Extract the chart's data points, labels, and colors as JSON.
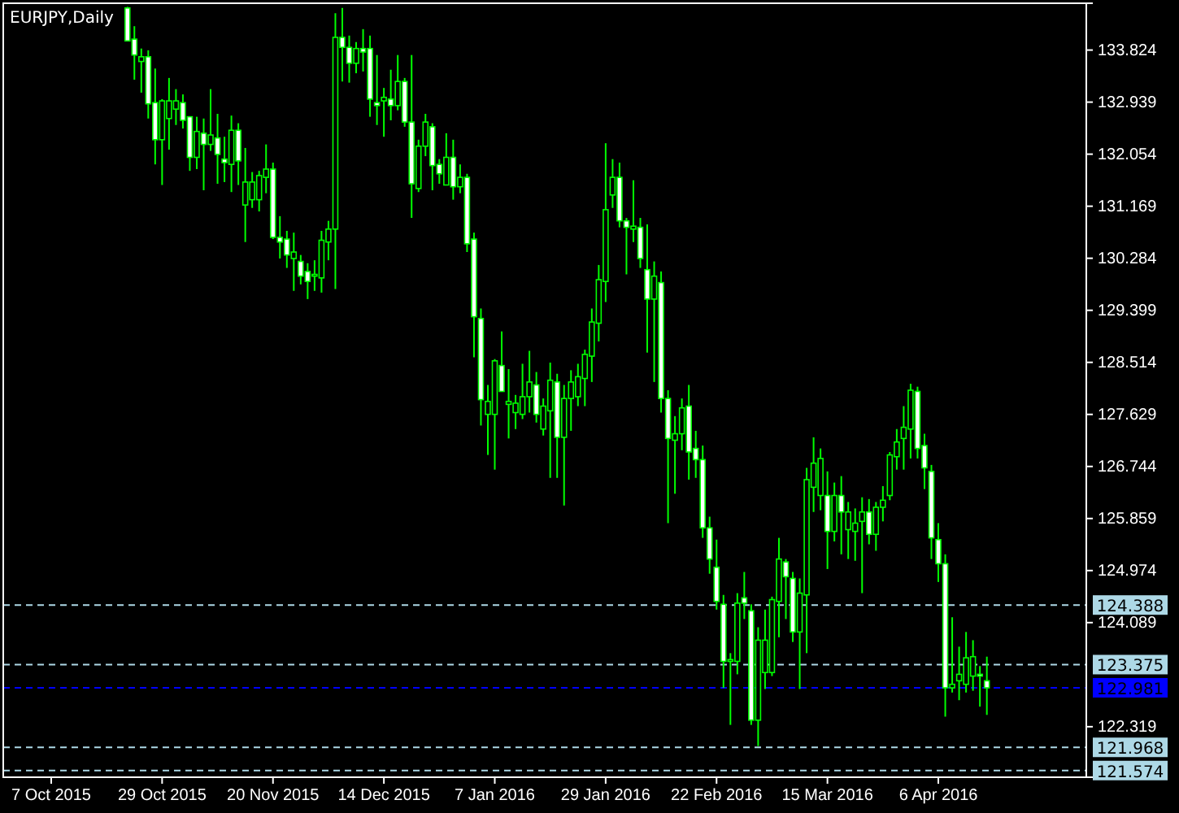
{
  "chart_data": {
    "type": "candlestick",
    "title": "EURJPY,Daily",
    "categories": [
      "7 Oct 2015",
      null,
      null,
      null,
      null,
      null,
      null,
      null,
      null,
      null,
      null,
      null,
      null,
      null,
      null,
      null,
      "29 Oct 2015",
      null,
      null,
      null,
      null,
      null,
      null,
      null,
      null,
      null,
      null,
      null,
      null,
      null,
      null,
      null,
      "20 Nov 2015",
      null,
      null,
      null,
      null,
      null,
      null,
      null,
      null,
      null,
      null,
      null,
      null,
      null,
      null,
      null,
      "14 Dec 2015",
      null,
      null,
      null,
      null,
      null,
      null,
      null,
      null,
      null,
      null,
      null,
      null,
      null,
      null,
      null,
      "7 Jan 2016",
      null,
      null,
      null,
      null,
      null,
      null,
      null,
      null,
      null,
      null,
      null,
      null,
      null,
      null,
      null,
      "29 Jan 2016",
      null,
      null,
      null,
      null,
      null,
      null,
      null,
      null,
      null,
      null,
      null,
      null,
      null,
      null,
      null,
      "22 Feb 2016",
      null,
      null,
      null,
      null,
      null,
      null,
      null,
      null,
      null,
      null,
      null,
      null,
      null,
      null,
      null,
      "15 Mar 2016",
      null,
      null,
      null,
      null,
      null,
      null,
      null,
      null,
      null,
      null,
      null,
      null,
      null,
      null,
      null,
      "6 Apr 2016",
      null,
      null,
      null,
      null,
      null,
      null,
      null,
      null,
      null,
      null,
      null,
      null,
      null,
      null,
      null,
      null,
      null,
      null,
      null,
      null,
      null
    ],
    "ohlc": [
      null,
      null,
      null,
      null,
      null,
      null,
      null,
      null,
      null,
      null,
      null,
      [
        134.54,
        134.56,
        133.98,
        133.98
      ],
      [
        134.01,
        134.23,
        133.32,
        133.74
      ],
      [
        133.63,
        133.85,
        133.1,
        133.71
      ],
      [
        133.71,
        133.82,
        132.66,
        132.91
      ],
      [
        132.93,
        133.51,
        131.88,
        132.3
      ],
      [
        132.3,
        132.99,
        131.53,
        132.96
      ],
      [
        132.66,
        133.35,
        132.13,
        132.96
      ],
      [
        132.82,
        133.16,
        132.55,
        132.96
      ],
      [
        132.93,
        133.07,
        132.49,
        132.63
      ],
      [
        132.69,
        132.69,
        131.77,
        132.0
      ],
      [
        132.0,
        132.69,
        131.8,
        132.44
      ],
      [
        132.41,
        132.66,
        131.44,
        132.22
      ],
      [
        132.22,
        133.16,
        132.11,
        132.38
      ],
      [
        132.33,
        132.74,
        131.55,
        132.05
      ],
      [
        131.97,
        132.35,
        131.58,
        131.91
      ],
      [
        131.88,
        132.71,
        131.41,
        132.46
      ],
      [
        132.46,
        132.58,
        131.53,
        131.94
      ],
      [
        131.19,
        132.16,
        130.56,
        131.58
      ],
      [
        131.28,
        131.75,
        131.14,
        131.58
      ],
      [
        131.28,
        131.77,
        131.08,
        131.69
      ],
      [
        131.66,
        132.22,
        131.39,
        131.8
      ],
      [
        131.8,
        131.91,
        130.61,
        130.64
      ],
      [
        130.64,
        131.0,
        130.28,
        130.56
      ],
      [
        130.61,
        130.75,
        130.12,
        130.34
      ],
      [
        130.28,
        130.72,
        129.73,
        130.39
      ],
      [
        130.23,
        130.34,
        129.84,
        129.98
      ],
      [
        130.06,
        130.2,
        129.59,
        129.89
      ],
      [
        129.98,
        130.25,
        129.73,
        130.01
      ],
      [
        129.95,
        130.75,
        129.7,
        130.59
      ],
      [
        130.56,
        130.92,
        130.25,
        130.78
      ],
      [
        130.78,
        134.45,
        129.76,
        134.04
      ],
      [
        134.04,
        134.54,
        133.29,
        133.87
      ],
      [
        133.87,
        134.07,
        133.27,
        133.6
      ],
      [
        133.6,
        133.96,
        133.43,
        133.85
      ],
      [
        133.85,
        134.18,
        133.46,
        133.79
      ],
      [
        133.85,
        134.07,
        132.69,
        132.99
      ],
      [
        132.93,
        133.74,
        132.55,
        132.88
      ],
      [
        132.96,
        133.18,
        132.35,
        133.02
      ],
      [
        132.99,
        133.49,
        132.63,
        132.88
      ],
      [
        132.88,
        133.74,
        132.8,
        133.29
      ],
      [
        133.29,
        133.35,
        132.52,
        132.6
      ],
      [
        132.6,
        133.74,
        130.97,
        131.55
      ],
      [
        131.47,
        132.3,
        131.41,
        132.19
      ],
      [
        132.19,
        132.74,
        132.02,
        132.6
      ],
      [
        132.52,
        132.58,
        131.44,
        131.86
      ],
      [
        131.88,
        131.97,
        131.55,
        131.72
      ],
      [
        131.53,
        132.41,
        131.53,
        132.0
      ],
      [
        132.0,
        132.3,
        131.28,
        131.5
      ],
      [
        131.5,
        131.88,
        131.39,
        131.66
      ],
      [
        131.66,
        131.72,
        130.39,
        130.53
      ],
      [
        130.61,
        130.72,
        128.6,
        129.29
      ],
      [
        129.26,
        129.43,
        127.44,
        127.88
      ],
      [
        127.63,
        128.13,
        126.94,
        127.85
      ],
      [
        127.63,
        128.57,
        126.69,
        128.54
      ],
      [
        128.46,
        129.04,
        128.02,
        128.02
      ],
      [
        127.8,
        128.4,
        127.22,
        127.85
      ],
      [
        127.66,
        127.96,
        127.38,
        127.82
      ],
      [
        127.63,
        128.49,
        127.55,
        127.93
      ],
      [
        127.93,
        128.71,
        127.66,
        128.18
      ],
      [
        128.13,
        128.35,
        127.49,
        127.63
      ],
      [
        127.38,
        127.9,
        127.27,
        127.77
      ],
      [
        127.69,
        128.51,
        126.55,
        128.21
      ],
      [
        128.18,
        128.32,
        126.55,
        127.24
      ],
      [
        127.24,
        128.13,
        126.08,
        127.9
      ],
      [
        127.9,
        128.38,
        127.35,
        128.18
      ],
      [
        127.93,
        128.49,
        127.77,
        128.27
      ],
      [
        128.24,
        128.73,
        127.77,
        128.65
      ],
      [
        128.62,
        129.43,
        128.18,
        129.2
      ],
      [
        129.18,
        130.17,
        128.87,
        129.92
      ],
      [
        129.89,
        132.24,
        129.54,
        131.11
      ],
      [
        131.36,
        131.97,
        131.14,
        131.66
      ],
      [
        131.66,
        131.91,
        130.81,
        130.92
      ],
      [
        130.92,
        130.97,
        130.01,
        130.81
      ],
      [
        130.78,
        131.61,
        130.56,
        130.83
      ],
      [
        130.81,
        130.97,
        130.12,
        130.28
      ],
      [
        130.09,
        130.86,
        128.68,
        129.59
      ],
      [
        129.59,
        130.23,
        128.18,
        129.98
      ],
      [
        129.87,
        130.06,
        127.66,
        127.9
      ],
      [
        127.9,
        128.04,
        125.78,
        127.22
      ],
      [
        127.19,
        127.6,
        126.28,
        127.3
      ],
      [
        127.3,
        127.9,
        127.02,
        127.74
      ],
      [
        127.77,
        128.13,
        126.52,
        126.99
      ],
      [
        127.05,
        127.35,
        126.55,
        126.86
      ],
      [
        126.86,
        127.1,
        125.53,
        125.7
      ],
      [
        125.7,
        125.89,
        124.92,
        125.17
      ],
      [
        125.03,
        125.5,
        124.31,
        124.45
      ],
      [
        124.4,
        124.56,
        122.98,
        123.43
      ],
      [
        123.43,
        123.57,
        122.35,
        123.46
      ],
      [
        123.43,
        124.59,
        123.21,
        124.42
      ],
      [
        124.51,
        124.95,
        124.15,
        124.42
      ],
      [
        124.29,
        124.4,
        122.35,
        122.43
      ],
      [
        122.43,
        124.01,
        121.99,
        123.79
      ],
      [
        123.24,
        124.31,
        122.96,
        123.79
      ],
      [
        123.24,
        124.53,
        123.18,
        124.48
      ],
      [
        124.45,
        125.53,
        123.84,
        125.17
      ],
      [
        125.12,
        125.17,
        124.15,
        124.87
      ],
      [
        124.84,
        124.95,
        123.76,
        123.93
      ],
      [
        123.93,
        124.84,
        122.96,
        124.59
      ],
      [
        124.56,
        126.72,
        123.57,
        126.52
      ],
      [
        126.39,
        127.24,
        125.97,
        126.8
      ],
      [
        126.25,
        127.05,
        126.0,
        126.88
      ],
      [
        126.25,
        126.66,
        125.0,
        125.64
      ],
      [
        125.64,
        126.47,
        125.47,
        126.25
      ],
      [
        126.25,
        126.58,
        125.25,
        125.97
      ],
      [
        125.67,
        126.14,
        125.17,
        125.97
      ],
      [
        125.64,
        126.03,
        125.14,
        125.78
      ],
      [
        125.81,
        126.22,
        124.59,
        125.97
      ],
      [
        125.97,
        126.19,
        125.42,
        125.59
      ],
      [
        125.59,
        126.14,
        125.31,
        126.05
      ],
      [
        126.05,
        126.41,
        125.81,
        126.17
      ],
      [
        126.25,
        126.99,
        126.17,
        126.94
      ],
      [
        126.91,
        127.38,
        126.69,
        127.16
      ],
      [
        127.22,
        127.77,
        126.69,
        127.41
      ],
      [
        127.38,
        128.15,
        126.88,
        128.04
      ],
      [
        128.02,
        128.1,
        126.88,
        127.05
      ],
      [
        127.1,
        127.3,
        126.36,
        126.72
      ],
      [
        126.66,
        126.77,
        125.17,
        125.53
      ],
      [
        125.5,
        125.78,
        124.78,
        125.09
      ],
      [
        125.09,
        125.25,
        122.49,
        122.98
      ],
      [
        122.98,
        124.18,
        122.9,
        123.04
      ],
      [
        123.1,
        123.68,
        122.77,
        123.21
      ],
      [
        123.04,
        123.93,
        122.9,
        123.49
      ],
      [
        123.18,
        123.79,
        122.93,
        123.51
      ],
      [
        123.21,
        123.35,
        122.66,
        123.18
      ],
      [
        123.1,
        123.51,
        122.52,
        122.98
      ],
      null,
      null,
      null,
      null,
      null,
      null,
      null,
      null,
      null,
      null,
      null,
      null,
      null,
      null
    ],
    "ylim": [
      121.46,
      134.62
    ],
    "yticks": [
      133.824,
      132.939,
      132.054,
      131.169,
      130.284,
      129.399,
      128.514,
      127.629,
      126.744,
      125.859,
      124.974,
      124.089,
      122.319
    ],
    "ref_lines": [
      {
        "axis": "y",
        "value": 124.388,
        "label": "124.388",
        "color": "#add8e6",
        "line_style": "dashed"
      },
      {
        "axis": "y",
        "value": 123.375,
        "label": "123.375",
        "color": "#add8e6",
        "line_style": "dashed"
      },
      {
        "axis": "y",
        "value": 122.981,
        "label": "122.981",
        "color": "#0000ff",
        "line_style": "dashed"
      },
      {
        "axis": "y",
        "value": 121.968,
        "label": "121.968",
        "color": "#add8e6",
        "line_style": "dashed"
      },
      {
        "axis": "y",
        "value": 121.574,
        "label": "121.574",
        "color": "#add8e6",
        "line_style": "dashed"
      }
    ],
    "grid": false
  }
}
